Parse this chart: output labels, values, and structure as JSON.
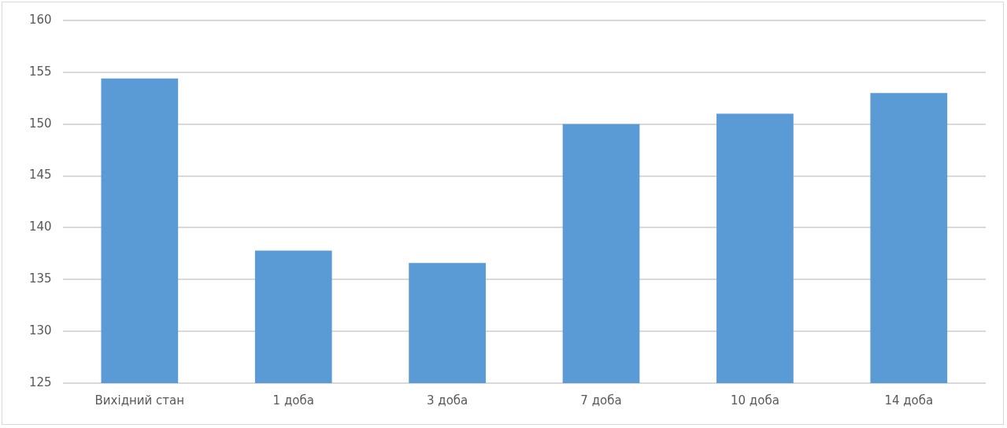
{
  "chart_data": {
    "type": "bar",
    "categories": [
      "Вихідний стан",
      "1 доба",
      "3 доба",
      "7 доба",
      "10 доба",
      "14 доба"
    ],
    "values": [
      154.4,
      137.8,
      136.6,
      150,
      151,
      153
    ],
    "color": "#5b9bd5",
    "ylim": [
      125,
      160
    ],
    "yticks": [
      125,
      130,
      135,
      140,
      145,
      150,
      155,
      160
    ],
    "grid": "y",
    "legend": false
  }
}
